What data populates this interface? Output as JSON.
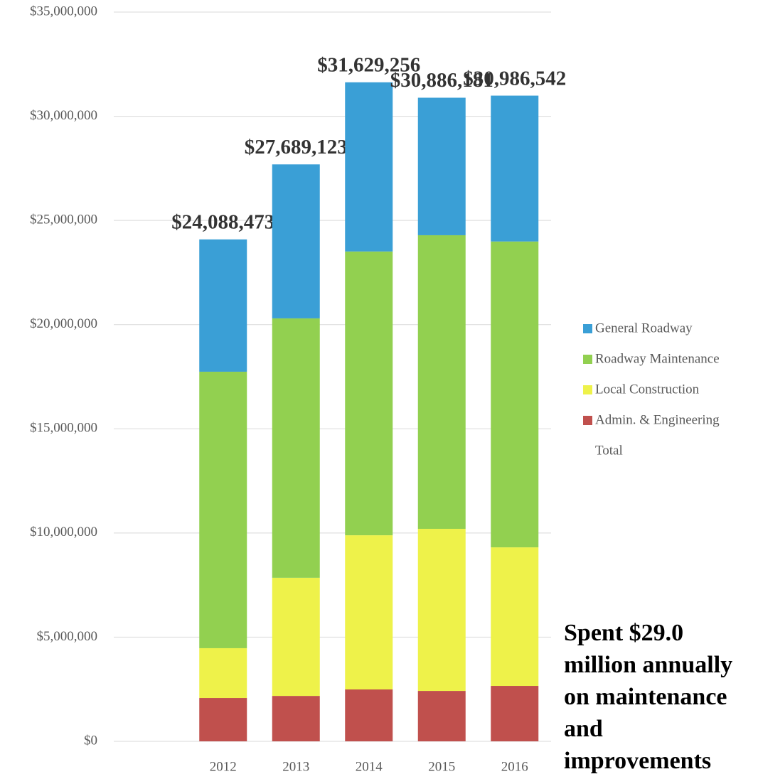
{
  "chart_data": {
    "type": "stacked_bar",
    "categories": [
      null,
      "2012",
      "2013",
      "2014",
      "2015",
      "2016"
    ],
    "series": [
      {
        "name": "General Roadway",
        "color": "#3a9fd6",
        "values": [
          null,
          6350000,
          7390000,
          8120000,
          6600000,
          7000000
        ]
      },
      {
        "name": "Roadway Maintenance",
        "color": "#92d050",
        "values": [
          null,
          13270000,
          12450000,
          13620000,
          14090000,
          14680000
        ]
      },
      {
        "name": "Local Construction",
        "color": "#eef24a",
        "values": [
          null,
          2390000,
          5670000,
          7400000,
          7780000,
          6650000
        ]
      },
      {
        "name": "Admin. & Engineering",
        "color": "#c0504d",
        "values": [
          null,
          2080000,
          2180000,
          2490000,
          2420000,
          2660000
        ]
      },
      {
        "name": "Total",
        "values": [
          null,
          24088473,
          27689123,
          31629256,
          30886181,
          30986542
        ],
        "value_labels": [
          null,
          "$24,088,473",
          "$27,689,123",
          "$31,629,256",
          "$30,886,181",
          "$30,986,542"
        ]
      }
    ],
    "ylim": [
      0,
      35000000
    ],
    "yticks": [
      {
        "value": 0,
        "label": "$0"
      },
      {
        "value": 5000000,
        "label": "$5,000,000"
      },
      {
        "value": 10000000,
        "label": "$10,000,000"
      },
      {
        "value": 15000000,
        "label": "$15,000,000"
      },
      {
        "value": 20000000,
        "label": "$20,000,000"
      },
      {
        "value": 25000000,
        "label": "$25,000,000"
      },
      {
        "value": 30000000,
        "label": "$30,000,000"
      },
      {
        "value": 35000000,
        "label": "$35,000,000"
      }
    ],
    "grid": true,
    "legend": "right",
    "annotation": "Spent $29.0 million annually on maintenance and improvements"
  }
}
